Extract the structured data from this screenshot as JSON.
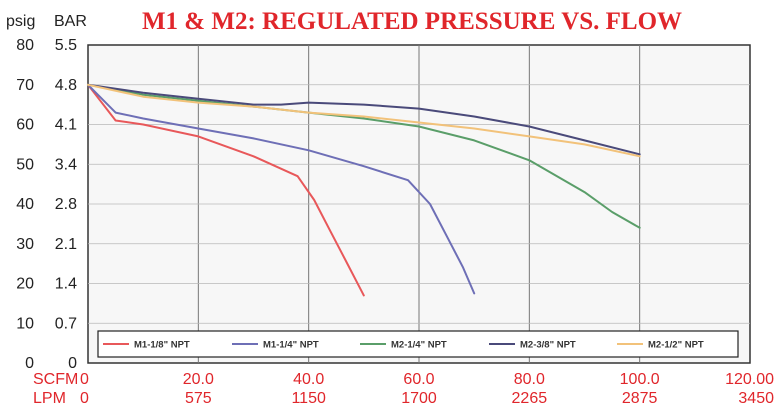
{
  "chart_data": {
    "type": "line",
    "title": "M1 & M2: REGULATED PRESSURE VS. FLOW",
    "y_unit_psig": "psig",
    "y_unit_bar": "BAR",
    "x_unit_scfm": "SCFM",
    "x_unit_lpm": "LPM",
    "psig_ticks": [
      "80",
      "70",
      "60",
      "50",
      "40",
      "30",
      "20",
      "10",
      "0"
    ],
    "bar_ticks": [
      "5.5",
      "4.8",
      "4.1",
      "3.4",
      "2.8",
      "2.1",
      "1.4",
      "0.7",
      "0"
    ],
    "scfm_ticks": [
      "0",
      "20.0",
      "40.0",
      "60.0",
      "80.0",
      "100.0",
      "120.00"
    ],
    "lpm_ticks": [
      "0",
      "575",
      "1150",
      "1700",
      "2265",
      "2875",
      "3450"
    ],
    "xlim": [
      0,
      120
    ],
    "ylim": [
      0,
      80
    ],
    "grid": true,
    "legend_position": "bottom",
    "series": [
      {
        "name": "M1-1/8\" NPT",
        "color": "#e8585a",
        "x": [
          0,
          5,
          10,
          20,
          30,
          38,
          41,
          44,
          47,
          50
        ],
        "y": [
          70,
          61,
          60,
          57,
          52,
          47,
          41,
          33,
          25,
          17
        ]
      },
      {
        "name": "M1-1/4\" NPT",
        "color": "#6e6fb6",
        "x": [
          0,
          5,
          10,
          20,
          30,
          40,
          50,
          58,
          62,
          65,
          68,
          70
        ],
        "y": [
          70,
          63,
          61.5,
          59,
          56.5,
          53.5,
          49.5,
          46,
          40,
          32,
          24,
          17.5
        ]
      },
      {
        "name": "M2-1/4\" NPT",
        "color": "#5a9e69",
        "x": [
          0,
          10,
          20,
          30,
          40,
          50,
          60,
          70,
          80,
          90,
          95,
          100
        ],
        "y": [
          70,
          67.5,
          66,
          64.5,
          63,
          61.5,
          59.5,
          56,
          51,
          43,
          38,
          34
        ]
      },
      {
        "name": "M2-3/8\" NPT",
        "color": "#4a4a7a",
        "x": [
          0,
          10,
          20,
          30,
          35,
          40,
          50,
          60,
          70,
          80,
          90,
          100
        ],
        "y": [
          70,
          68,
          66.5,
          65,
          65,
          65.5,
          65,
          64,
          62,
          59.5,
          56,
          52.5
        ]
      },
      {
        "name": "M2-1/2\" NPT",
        "color": "#f2c27a",
        "x": [
          0,
          10,
          20,
          30,
          40,
          50,
          60,
          70,
          80,
          90,
          100
        ],
        "y": [
          70,
          67,
          65.5,
          64.5,
          63,
          62,
          60.5,
          59,
          57,
          55,
          52
        ]
      }
    ]
  }
}
